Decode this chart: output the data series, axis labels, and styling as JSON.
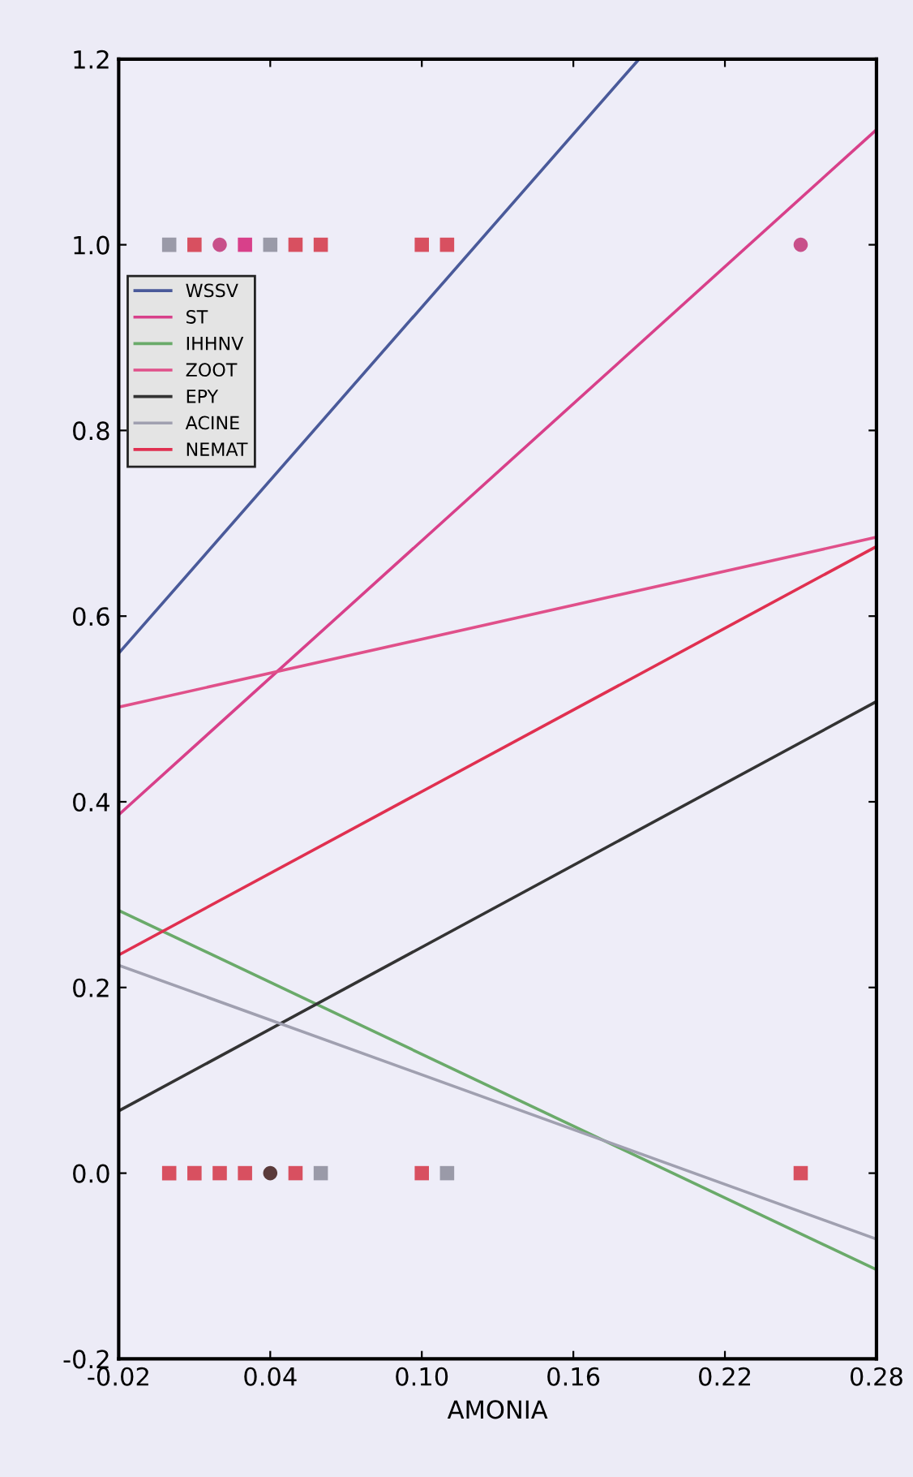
{
  "chart_data": {
    "type": "scatter",
    "xlabel": "AMONIA",
    "xlim": [
      -0.02,
      0.28
    ],
    "xticks": [
      {
        "value": -0.02,
        "label": "-0.02"
      },
      {
        "value": 0.04,
        "label": "0.04"
      },
      {
        "value": 0.1,
        "label": "0.10"
      },
      {
        "value": 0.16,
        "label": "0.16"
      },
      {
        "value": 0.22,
        "label": "0.22"
      },
      {
        "value": 0.28,
        "label": "0.28"
      }
    ],
    "ylim": [
      -0.2,
      1.2
    ],
    "yticks": [
      {
        "value": -0.2,
        "label": "-0.2"
      },
      {
        "value": 0,
        "label": "0.0"
      },
      {
        "value": 0.2,
        "label": "0.2"
      },
      {
        "value": 0.4,
        "label": "0.4"
      },
      {
        "value": 0.6,
        "label": "0.6"
      },
      {
        "value": 0.8,
        "label": "0.8"
      },
      {
        "value": 1.0,
        "label": "1.0"
      },
      {
        "value": 1.2,
        "label": "1.2"
      }
    ],
    "grid": false,
    "legend": "top left",
    "series": [
      {
        "name": "WSSV",
        "type": "line",
        "color": "#4a5a9a",
        "x": [
          -0.02,
          0.186
        ],
        "values": [
          0.56,
          1.2
        ]
      },
      {
        "name": "ST",
        "type": "line",
        "color": "#d8408a",
        "x": [
          -0.02,
          0.28
        ],
        "values": [
          0.386,
          1.124
        ]
      },
      {
        "name": "IHHNV",
        "type": "line",
        "color": "#6aaa6a",
        "x": [
          -0.02,
          0.28
        ],
        "values": [
          0.283,
          -0.104
        ]
      },
      {
        "name": "ZOOT",
        "type": "line",
        "color": "#e0508a",
        "x": [
          -0.02,
          0.28
        ],
        "values": [
          0.502,
          0.685
        ]
      },
      {
        "name": "EPY",
        "type": "line",
        "color": "#333333",
        "x": [
          -0.02,
          0.28
        ],
        "values": [
          0.067,
          0.508
        ]
      },
      {
        "name": "ACINE",
        "type": "line",
        "color": "#a0a0b0",
        "x": [
          -0.02,
          0.28
        ],
        "values": [
          0.224,
          -0.071
        ]
      },
      {
        "name": "NEMAT",
        "type": "line",
        "color": "#e03050",
        "x": [
          -0.02,
          0.28
        ],
        "values": [
          0.235,
          0.675
        ]
      },
      {
        "color": "#c8508a",
        "marker": "circle",
        "x": [
          0.02,
          0.25
        ],
        "values": [
          1,
          1
        ]
      },
      {
        "color": "#d8408a",
        "marker": "square",
        "x": [
          0.03
        ],
        "values": [
          1
        ]
      },
      {
        "color": "#5a3a3a",
        "marker": "circle",
        "x": [
          0.04
        ],
        "values": [
          0
        ]
      },
      {
        "color": "#9a9aa8",
        "marker": "square",
        "x": [
          0,
          0.04,
          0.06,
          0.11
        ],
        "values": [
          1,
          1,
          0,
          0
        ]
      },
      {
        "color": "#d85060",
        "marker": "square",
        "x": [
          0.01,
          0.05,
          0.06,
          0.1,
          0.11,
          0,
          0.01,
          0.02,
          0.03,
          0.05,
          0.1,
          0.25
        ],
        "values": [
          1,
          1,
          1,
          1,
          1,
          0,
          0,
          0,
          0,
          0,
          0,
          0
        ]
      }
    ]
  }
}
